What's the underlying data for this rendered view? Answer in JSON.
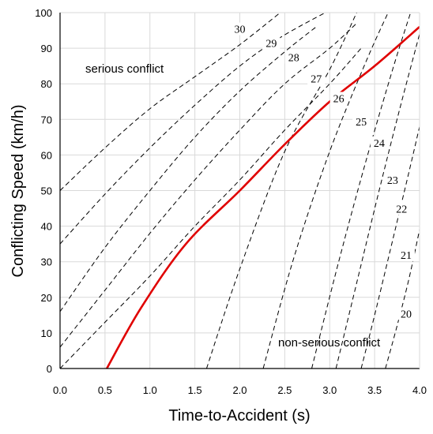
{
  "chart_data": {
    "type": "line",
    "title": "",
    "xlabel": "Time-to-Accident (s)",
    "ylabel": "Conflicting Speed (km/h)",
    "xlim": [
      0,
      4.0
    ],
    "ylim": [
      0,
      100
    ],
    "x_ticks": [
      "0.0",
      "0.5",
      "1.0",
      "1.5",
      "2.0",
      "2.5",
      "3.0",
      "3.5",
      "4.0"
    ],
    "y_ticks": [
      "0",
      "10",
      "20",
      "30",
      "40",
      "50",
      "60",
      "70",
      "80",
      "90",
      "100"
    ],
    "grid": true,
    "annotations": {
      "upper": "serious conflict",
      "lower": "non-serious conflict"
    },
    "threshold_curve": "26",
    "threshold_color": "#e00000",
    "series": [
      {
        "name": "20",
        "points": [
          [
            3.62,
            0
          ],
          [
            3.75,
            12
          ],
          [
            3.88,
            25
          ],
          [
            4.0,
            39
          ]
        ]
      },
      {
        "name": "21",
        "points": [
          [
            3.35,
            0
          ],
          [
            3.5,
            15
          ],
          [
            3.7,
            36
          ],
          [
            3.88,
            55
          ],
          [
            4.0,
            68
          ]
        ]
      },
      {
        "name": "22",
        "points": [
          [
            3.07,
            0
          ],
          [
            3.3,
            24
          ],
          [
            3.55,
            50
          ],
          [
            3.78,
            73
          ],
          [
            4.0,
            94
          ]
        ]
      },
      {
        "name": "23",
        "points": [
          [
            2.8,
            0
          ],
          [
            3.1,
            30
          ],
          [
            3.4,
            58
          ],
          [
            3.7,
            84
          ],
          [
            3.9,
            100
          ]
        ]
      },
      {
        "name": "24",
        "points": [
          [
            2.26,
            0
          ],
          [
            2.6,
            31
          ],
          [
            3.0,
            61
          ],
          [
            3.4,
            86
          ],
          [
            3.65,
            100
          ]
        ]
      },
      {
        "name": "25",
        "points": [
          [
            1.63,
            0
          ],
          [
            2.0,
            28
          ],
          [
            2.5,
            61
          ],
          [
            3.0,
            84
          ],
          [
            3.3,
            100
          ]
        ]
      },
      {
        "name": "26",
        "points": [
          [
            0.52,
            0
          ],
          [
            0.9,
            17
          ],
          [
            1.4,
            35
          ],
          [
            2.0,
            50
          ],
          [
            2.5,
            63
          ],
          [
            3.0,
            75
          ],
          [
            3.5,
            85
          ],
          [
            4.0,
            96
          ]
        ]
      },
      {
        "name": "27",
        "points": [
          [
            0,
            0
          ],
          [
            0.5,
            13
          ],
          [
            1.0,
            26
          ],
          [
            1.5,
            40
          ],
          [
            2.0,
            53
          ],
          [
            2.5,
            67
          ],
          [
            3.0,
            80
          ],
          [
            3.35,
            90
          ]
        ]
      },
      {
        "name": "28",
        "points": [
          [
            0,
            6
          ],
          [
            0.5,
            22
          ],
          [
            1.0,
            38
          ],
          [
            1.5,
            53
          ],
          [
            2.0,
            67
          ],
          [
            2.5,
            80
          ],
          [
            3.0,
            90
          ],
          [
            3.3,
            97
          ]
        ]
      },
      {
        "name": "29",
        "points": [
          [
            0,
            16
          ],
          [
            0.5,
            34
          ],
          [
            1.0,
            50
          ],
          [
            1.5,
            65
          ],
          [
            2.0,
            78
          ],
          [
            2.5,
            89
          ],
          [
            2.85,
            96
          ]
        ]
      },
      {
        "name": "30",
        "points": [
          [
            0,
            35
          ],
          [
            0.5,
            49
          ],
          [
            1.0,
            62
          ],
          [
            1.5,
            74
          ],
          [
            2.0,
            85
          ],
          [
            2.45,
            93
          ],
          [
            2.95,
            100
          ]
        ]
      },
      {
        "name": "",
        "points": [
          [
            0,
            50
          ],
          [
            0.5,
            62
          ],
          [
            1.0,
            73
          ],
          [
            1.5,
            82
          ],
          [
            2.0,
            91
          ],
          [
            2.45,
            100
          ]
        ]
      }
    ],
    "curve_labels": [
      {
        "text": "30",
        "x": 2.0,
        "y": 95
      },
      {
        "text": "29",
        "x": 2.35,
        "y": 91
      },
      {
        "text": "28",
        "x": 2.6,
        "y": 87
      },
      {
        "text": "27",
        "x": 2.85,
        "y": 81
      },
      {
        "text": "26",
        "x": 3.1,
        "y": 75.5
      },
      {
        "text": "25",
        "x": 3.35,
        "y": 69
      },
      {
        "text": "24",
        "x": 3.55,
        "y": 63
      },
      {
        "text": "23",
        "x": 3.7,
        "y": 52.5
      },
      {
        "text": "22",
        "x": 3.8,
        "y": 44.5
      },
      {
        "text": "21",
        "x": 3.85,
        "y": 31.5
      },
      {
        "text": "20",
        "x": 3.85,
        "y": 15
      }
    ]
  }
}
